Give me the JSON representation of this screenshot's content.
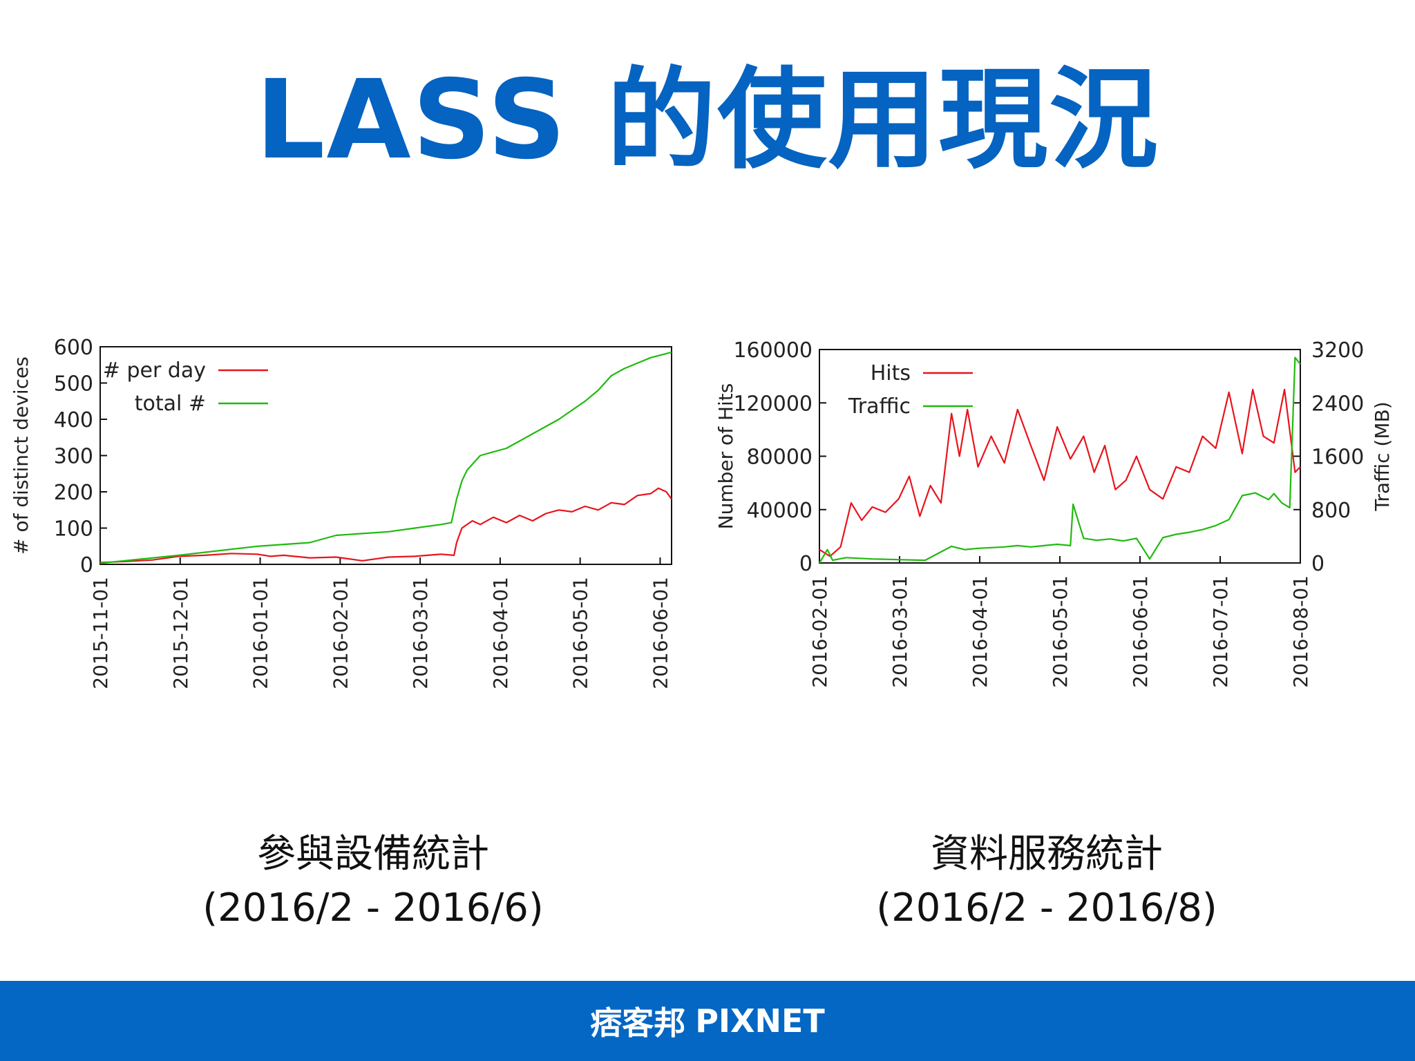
{
  "slide": {
    "title": "LASS 的使用現況",
    "brand_color": "#0563c1",
    "footer_color": "#0467c4",
    "footer_logo_cn": "痞客邦",
    "footer_logo_en": "PIXNET"
  },
  "captions": {
    "left_line1": "參與設備統計",
    "left_line2": "(2016/2 - 2016/6)",
    "right_line1": "資料服務統計",
    "right_line2": "(2016/2 - 2016/8)"
  },
  "chart_data": [
    {
      "type": "line",
      "ylabel": "# of distinct devices",
      "ylim": [
        0,
        600
      ],
      "yticks": [
        "0",
        "100",
        "200",
        "300",
        "400",
        "500",
        "600"
      ],
      "xticks": [
        "2015-11-01",
        "2015-12-01",
        "2016-01-01",
        "2016-02-01",
        "2016-03-01",
        "2016-04-01",
        "2016-05-01",
        "2016-06-01"
      ],
      "xlim_days": [
        0,
        218
      ],
      "legend_position": "top-left",
      "series": [
        {
          "name": "# per day",
          "color": "#e8141c",
          "points": [
            [
              0,
              5
            ],
            [
              10,
              8
            ],
            [
              20,
              12
            ],
            [
              30,
              22
            ],
            [
              40,
              25
            ],
            [
              50,
              30
            ],
            [
              60,
              28
            ],
            [
              65,
              22
            ],
            [
              70,
              25
            ],
            [
              80,
              18
            ],
            [
              90,
              20
            ],
            [
              95,
              15
            ],
            [
              100,
              10
            ],
            [
              110,
              20
            ],
            [
              120,
              22
            ],
            [
              130,
              28
            ],
            [
              135,
              25
            ],
            [
              136,
              60
            ],
            [
              138,
              100
            ],
            [
              142,
              120
            ],
            [
              145,
              110
            ],
            [
              150,
              130
            ],
            [
              155,
              115
            ],
            [
              160,
              135
            ],
            [
              165,
              120
            ],
            [
              170,
              140
            ],
            [
              175,
              150
            ],
            [
              180,
              145
            ],
            [
              185,
              160
            ],
            [
              190,
              150
            ],
            [
              195,
              170
            ],
            [
              200,
              165
            ],
            [
              205,
              190
            ],
            [
              210,
              195
            ],
            [
              213,
              210
            ],
            [
              216,
              200
            ],
            [
              218,
              180
            ]
          ]
        },
        {
          "name": "total #",
          "color": "#1fba0f",
          "points": [
            [
              0,
              3
            ],
            [
              30,
              25
            ],
            [
              60,
              50
            ],
            [
              80,
              60
            ],
            [
              90,
              80
            ],
            [
              100,
              85
            ],
            [
              110,
              90
            ],
            [
              120,
              100
            ],
            [
              130,
              110
            ],
            [
              134,
              115
            ],
            [
              136,
              180
            ],
            [
              138,
              230
            ],
            [
              140,
              260
            ],
            [
              145,
              300
            ],
            [
              150,
              310
            ],
            [
              155,
              320
            ],
            [
              160,
              340
            ],
            [
              165,
              360
            ],
            [
              170,
              380
            ],
            [
              175,
              400
            ],
            [
              180,
              425
            ],
            [
              185,
              450
            ],
            [
              190,
              480
            ],
            [
              195,
              520
            ],
            [
              200,
              540
            ],
            [
              205,
              555
            ],
            [
              210,
              570
            ],
            [
              218,
              585
            ]
          ]
        }
      ]
    },
    {
      "type": "line",
      "ylabel": "Number of Hits",
      "y2label": "Traffic (MB)",
      "ylim": [
        0,
        160000
      ],
      "y2lim": [
        0,
        3200
      ],
      "yticks": [
        "0",
        "40000",
        "80000",
        "120000",
        "160000"
      ],
      "y2ticks": [
        "0",
        "800",
        "1600",
        "2400",
        "3200"
      ],
      "xticks": [
        "2016-02-01",
        "2016-03-01",
        "2016-04-01",
        "2016-05-01",
        "2016-06-01",
        "2016-07-01",
        "2016-08-01"
      ],
      "xlim_days": [
        0,
        182
      ],
      "legend_position": "top-left",
      "series": [
        {
          "name": "Hits",
          "color": "#e8141c",
          "axis": "left",
          "points": [
            [
              0,
              10000
            ],
            [
              4,
              5000
            ],
            [
              8,
              12000
            ],
            [
              12,
              45000
            ],
            [
              16,
              32000
            ],
            [
              20,
              42000
            ],
            [
              25,
              38000
            ],
            [
              30,
              48000
            ],
            [
              34,
              65000
            ],
            [
              38,
              35000
            ],
            [
              42,
              58000
            ],
            [
              46,
              45000
            ],
            [
              50,
              112000
            ],
            [
              53,
              80000
            ],
            [
              56,
              115000
            ],
            [
              60,
              72000
            ],
            [
              65,
              95000
            ],
            [
              70,
              75000
            ],
            [
              75,
              115000
            ],
            [
              80,
              88000
            ],
            [
              85,
              62000
            ],
            [
              90,
              102000
            ],
            [
              95,
              78000
            ],
            [
              100,
              95000
            ],
            [
              104,
              68000
            ],
            [
              108,
              88000
            ],
            [
              112,
              55000
            ],
            [
              116,
              62000
            ],
            [
              120,
              80000
            ],
            [
              125,
              55000
            ],
            [
              130,
              48000
            ],
            [
              135,
              72000
            ],
            [
              140,
              68000
            ],
            [
              145,
              95000
            ],
            [
              150,
              86000
            ],
            [
              155,
              128000
            ],
            [
              160,
              82000
            ],
            [
              164,
              130000
            ],
            [
              168,
              95000
            ],
            [
              172,
              90000
            ],
            [
              176,
              130000
            ],
            [
              180,
              68000
            ],
            [
              182,
              72000
            ]
          ]
        },
        {
          "name": "Traffic",
          "color": "#1fba0f",
          "axis": "right",
          "points": [
            [
              0,
              0
            ],
            [
              3,
              200
            ],
            [
              5,
              40
            ],
            [
              10,
              80
            ],
            [
              20,
              60
            ],
            [
              30,
              50
            ],
            [
              40,
              40
            ],
            [
              50,
              250
            ],
            [
              55,
              200
            ],
            [
              60,
              220
            ],
            [
              70,
              240
            ],
            [
              75,
              260
            ],
            [
              80,
              240
            ],
            [
              85,
              260
            ],
            [
              90,
              280
            ],
            [
              95,
              260
            ],
            [
              96,
              880
            ],
            [
              100,
              370
            ],
            [
              105,
              340
            ],
            [
              110,
              360
            ],
            [
              115,
              330
            ],
            [
              120,
              370
            ],
            [
              125,
              60
            ],
            [
              130,
              380
            ],
            [
              135,
              430
            ],
            [
              140,
              460
            ],
            [
              145,
              500
            ],
            [
              150,
              560
            ],
            [
              155,
              650
            ],
            [
              160,
              1010
            ],
            [
              165,
              1050
            ],
            [
              170,
              950
            ],
            [
              172,
              1040
            ],
            [
              175,
              900
            ],
            [
              178,
              830
            ],
            [
              180,
              3080
            ],
            [
              182,
              2980
            ]
          ]
        }
      ]
    }
  ]
}
